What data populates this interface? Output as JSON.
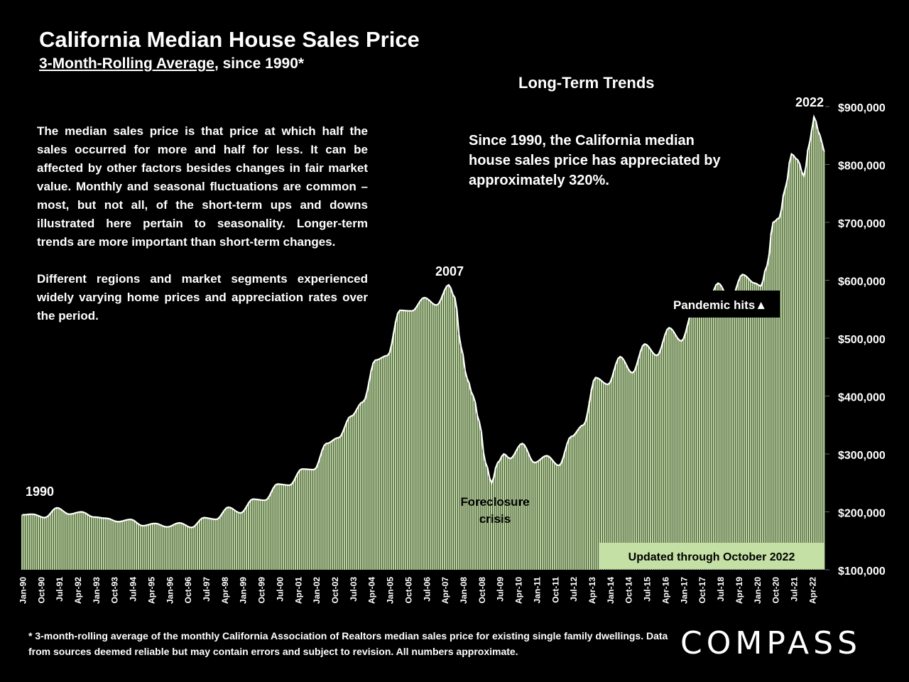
{
  "header": {
    "title": "California Median House Sales Price",
    "subtitle_underlined": "3-Month-Rolling Average",
    "subtitle_rest": ", since 1990*"
  },
  "section_heading": "Long-Term Trends",
  "description": {
    "para1": "The median sales price is that price at which half the sales occurred for more and half for less. It can be affected by other factors besides changes in fair market value. Monthly and seasonal fluctuations are common – most, but not all, of the short-term ups and downs illustrated here pertain to seasonality. Longer-term trends are more important than short-term changes.",
    "para2": "Different regions and market segments experienced widely varying home prices and appreciation rates over the period."
  },
  "callout": "Since 1990, the California median house sales price has appreciated by approximately 320%.",
  "footnote": "* 3-month-rolling average of the monthly California Association of Realtors median sales price for existing single family dwellings. Data from sources deemed reliable but may contain errors and subject to revision. All numbers approximate.",
  "logo": "COMPASS",
  "colors": {
    "bar_fill": "#b7d39b",
    "bar_edge": "#2a3a1f",
    "line": "#ffffff",
    "label_box": "#c5e0a5",
    "background": "#000000"
  },
  "chart_data": {
    "type": "bar",
    "title": "California Median House Sales Price",
    "xlabel": "",
    "ylabel": "",
    "ylim": [
      100000,
      900000
    ],
    "yticks": [
      100000,
      200000,
      300000,
      400000,
      500000,
      600000,
      700000,
      800000,
      900000
    ],
    "ytick_labels": [
      "$100,000",
      "$200,000",
      "$300,000",
      "$400,000",
      "$500,000",
      "$600,000",
      "$700,000",
      "$800,000",
      "$900,000"
    ],
    "start": "Jan-90",
    "end": "Oct-22",
    "xtick_labels": [
      "Jan-90",
      "Oct-90",
      "Jul-91",
      "Apr-92",
      "Jan-93",
      "Oct-93",
      "Jul-94",
      "Apr-95",
      "Jan-96",
      "Oct-96",
      "Jul-97",
      "Apr-98",
      "Jan-99",
      "Oct-99",
      "Jul-00",
      "Apr-01",
      "Jan-02",
      "Oct-02",
      "Jul-03",
      "Apr-04",
      "Jan-05",
      "Oct-05",
      "Jul-06",
      "Apr-07",
      "Jan-08",
      "Oct-08",
      "Jul-09",
      "Apr-10",
      "Jan-11",
      "Oct-11",
      "Jul-12",
      "Apr-13",
      "Jan-14",
      "Oct-14",
      "Jul-15",
      "Apr-16",
      "Jan-17",
      "Oct-17",
      "Jul-18",
      "Apr-19",
      "Jan-20",
      "Oct-20",
      "Jul-21",
      "Apr-22"
    ],
    "anchor_points": [
      {
        "date": "1990-01",
        "value": 195000
      },
      {
        "date": "1990-06",
        "value": 196000
      },
      {
        "date": "1990-12",
        "value": 190000
      },
      {
        "date": "1991-06",
        "value": 207000
      },
      {
        "date": "1991-12",
        "value": 196000
      },
      {
        "date": "1992-06",
        "value": 200000
      },
      {
        "date": "1992-12",
        "value": 191000
      },
      {
        "date": "1993-06",
        "value": 189000
      },
      {
        "date": "1993-12",
        "value": 183000
      },
      {
        "date": "1994-06",
        "value": 187000
      },
      {
        "date": "1994-12",
        "value": 176000
      },
      {
        "date": "1995-06",
        "value": 180000
      },
      {
        "date": "1995-12",
        "value": 174000
      },
      {
        "date": "1996-06",
        "value": 181000
      },
      {
        "date": "1996-12",
        "value": 173000
      },
      {
        "date": "1997-06",
        "value": 190000
      },
      {
        "date": "1997-12",
        "value": 187000
      },
      {
        "date": "1998-06",
        "value": 208000
      },
      {
        "date": "1998-12",
        "value": 198000
      },
      {
        "date": "1999-06",
        "value": 222000
      },
      {
        "date": "1999-12",
        "value": 220000
      },
      {
        "date": "2000-06",
        "value": 248000
      },
      {
        "date": "2000-12",
        "value": 246000
      },
      {
        "date": "2001-06",
        "value": 274000
      },
      {
        "date": "2001-12",
        "value": 273000
      },
      {
        "date": "2002-06",
        "value": 318000
      },
      {
        "date": "2002-12",
        "value": 328000
      },
      {
        "date": "2003-06",
        "value": 365000
      },
      {
        "date": "2003-12",
        "value": 390000
      },
      {
        "date": "2004-06",
        "value": 462000
      },
      {
        "date": "2004-12",
        "value": 470000
      },
      {
        "date": "2005-06",
        "value": 548000
      },
      {
        "date": "2005-12",
        "value": 547000
      },
      {
        "date": "2006-06",
        "value": 570000
      },
      {
        "date": "2006-12",
        "value": 557000
      },
      {
        "date": "2007-06",
        "value": 592000
      },
      {
        "date": "2007-09",
        "value": 570000
      },
      {
        "date": "2007-12",
        "value": 485000
      },
      {
        "date": "2008-03",
        "value": 430000
      },
      {
        "date": "2008-06",
        "value": 400000
      },
      {
        "date": "2008-09",
        "value": 355000
      },
      {
        "date": "2008-12",
        "value": 285000
      },
      {
        "date": "2009-03",
        "value": 250000
      },
      {
        "date": "2009-06",
        "value": 285000
      },
      {
        "date": "2009-09",
        "value": 300000
      },
      {
        "date": "2009-12",
        "value": 292000
      },
      {
        "date": "2010-06",
        "value": 318000
      },
      {
        "date": "2010-12",
        "value": 285000
      },
      {
        "date": "2011-06",
        "value": 297000
      },
      {
        "date": "2011-12",
        "value": 280000
      },
      {
        "date": "2012-06",
        "value": 330000
      },
      {
        "date": "2012-12",
        "value": 350000
      },
      {
        "date": "2013-06",
        "value": 432000
      },
      {
        "date": "2013-12",
        "value": 420000
      },
      {
        "date": "2014-06",
        "value": 468000
      },
      {
        "date": "2014-12",
        "value": 440000
      },
      {
        "date": "2015-06",
        "value": 490000
      },
      {
        "date": "2015-12",
        "value": 470000
      },
      {
        "date": "2016-06",
        "value": 518000
      },
      {
        "date": "2016-12",
        "value": 495000
      },
      {
        "date": "2017-06",
        "value": 550000
      },
      {
        "date": "2017-12",
        "value": 550000
      },
      {
        "date": "2018-06",
        "value": 595000
      },
      {
        "date": "2018-12",
        "value": 565000
      },
      {
        "date": "2019-06",
        "value": 610000
      },
      {
        "date": "2019-12",
        "value": 595000
      },
      {
        "date": "2020-03",
        "value": 590000
      },
      {
        "date": "2020-06",
        "value": 625000
      },
      {
        "date": "2020-09",
        "value": 700000
      },
      {
        "date": "2020-12",
        "value": 708000
      },
      {
        "date": "2021-03",
        "value": 760000
      },
      {
        "date": "2021-06",
        "value": 818000
      },
      {
        "date": "2021-09",
        "value": 808000
      },
      {
        "date": "2021-12",
        "value": 780000
      },
      {
        "date": "2022-03",
        "value": 840000
      },
      {
        "date": "2022-05",
        "value": 882000
      },
      {
        "date": "2022-08",
        "value": 850000
      },
      {
        "date": "2022-10",
        "value": 822000
      }
    ],
    "annotations": [
      {
        "text": "1990",
        "date": "1990-01"
      },
      {
        "text": "2007",
        "date": "2007-06"
      },
      {
        "text": "Foreclosure crisis",
        "date": "2009-03"
      },
      {
        "text": "Pandemic hits▲",
        "date": "2020-03"
      },
      {
        "text": "2022",
        "date": "2022-05"
      }
    ],
    "update_label": "Updated through October 2022"
  }
}
